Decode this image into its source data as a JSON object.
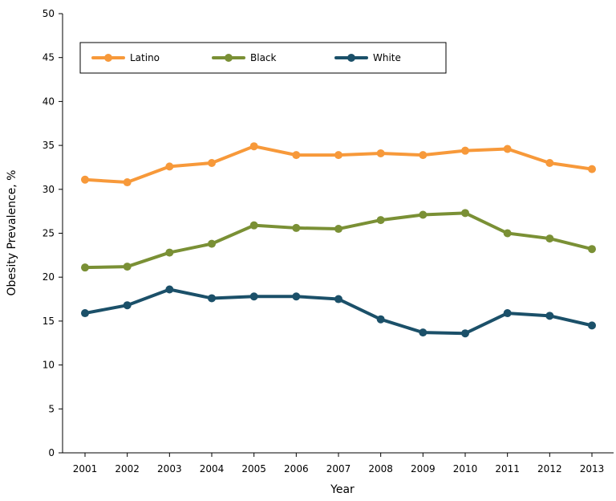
{
  "chart_data": {
    "type": "line",
    "title": "",
    "xlabel": "Year",
    "ylabel": "Obesity Prevalence, %",
    "ylim": [
      0,
      50
    ],
    "yticks": [
      0,
      5,
      10,
      15,
      20,
      25,
      30,
      35,
      40,
      45,
      50
    ],
    "categories": [
      "2001",
      "2002",
      "2003",
      "2004",
      "2005",
      "2006",
      "2007",
      "2008",
      "2009",
      "2010",
      "2011",
      "2012",
      "2013"
    ],
    "grid": false,
    "legend_placement": "top-left",
    "series": [
      {
        "name": "Latino",
        "color": "#f7993a",
        "values": [
          31.1,
          30.8,
          32.6,
          33.0,
          34.9,
          33.9,
          33.9,
          34.1,
          33.9,
          34.4,
          34.6,
          33.0,
          32.3
        ]
      },
      {
        "name": "Black",
        "color": "#7a9035",
        "values": [
          21.1,
          21.2,
          22.8,
          23.8,
          25.9,
          25.6,
          25.5,
          26.5,
          27.1,
          27.3,
          25.0,
          24.4,
          23.2
        ]
      },
      {
        "name": "White",
        "color": "#1b5069",
        "values": [
          15.9,
          16.8,
          18.6,
          17.6,
          17.8,
          17.8,
          17.5,
          15.2,
          13.7,
          13.6,
          15.9,
          15.6,
          14.5
        ]
      }
    ]
  }
}
